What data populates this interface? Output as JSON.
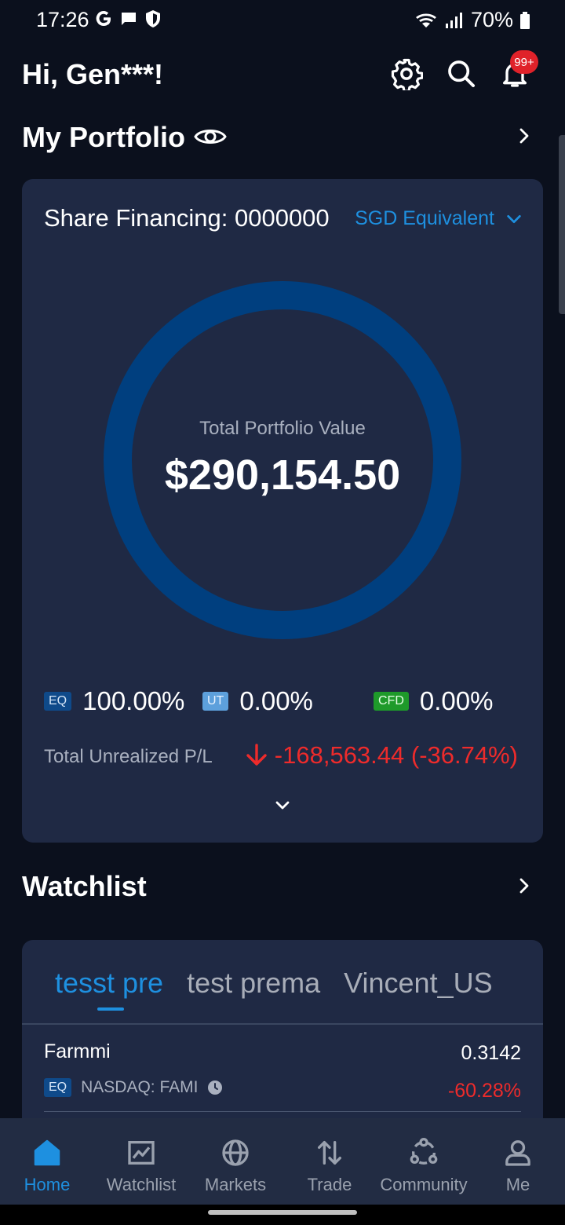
{
  "status_bar": {
    "time": "17:26",
    "battery": "70%",
    "icons": [
      "google-icon",
      "message-icon",
      "shield-icon",
      "wifi-icon",
      "signal-icon",
      "battery-icon"
    ]
  },
  "header": {
    "greeting": "Hi, Gen***!",
    "notification_badge": "99+",
    "icons": [
      "settings-icon",
      "search-icon",
      "bell-icon"
    ]
  },
  "portfolio": {
    "title": "My Portfolio",
    "account_label": "Share Financing: 0000000",
    "currency_label": "SGD Equivalent",
    "total_label": "Total Portfolio Value",
    "total_value": "$290,154.50",
    "allocation": [
      {
        "tag": "EQ",
        "percent": "100.00%",
        "color": "#0f4a8a"
      },
      {
        "tag": "UT",
        "percent": "0.00%",
        "color": "#5da0dc"
      },
      {
        "tag": "CFD",
        "percent": "0.00%",
        "color": "#1e9a2a"
      }
    ],
    "donut_fraction_eq": 1.0,
    "unrealized_label": "Total Unrealized P/L",
    "unrealized_value": "-168,563.44 (-36.74%)"
  },
  "watchlist": {
    "title": "Watchlist",
    "tabs": [
      {
        "label": "tesst pre",
        "active": true
      },
      {
        "label": "test prema",
        "active": false
      },
      {
        "label": "Vincent_US",
        "active": false
      }
    ],
    "items": [
      {
        "name": "Farmmi",
        "price": "0.3142",
        "tag": "EQ",
        "ticker": "NASDAQ: FAMI",
        "change": "-60.28%"
      }
    ]
  },
  "nav": {
    "items": [
      {
        "label": "Home",
        "icon": "home-icon",
        "active": true
      },
      {
        "label": "Watchlist",
        "icon": "chart-icon",
        "active": false
      },
      {
        "label": "Markets",
        "icon": "globe-icon",
        "active": false
      },
      {
        "label": "Trade",
        "icon": "trade-arrows-icon",
        "active": false
      },
      {
        "label": "Community",
        "icon": "community-icon",
        "active": false
      },
      {
        "label": "Me",
        "icon": "user-icon",
        "active": false
      }
    ]
  },
  "colors": {
    "background": "#0b101d",
    "card": "#1f2944",
    "accent": "#1e90e0",
    "negative": "#ee2b2b",
    "donut_ring": "#003f7f"
  }
}
